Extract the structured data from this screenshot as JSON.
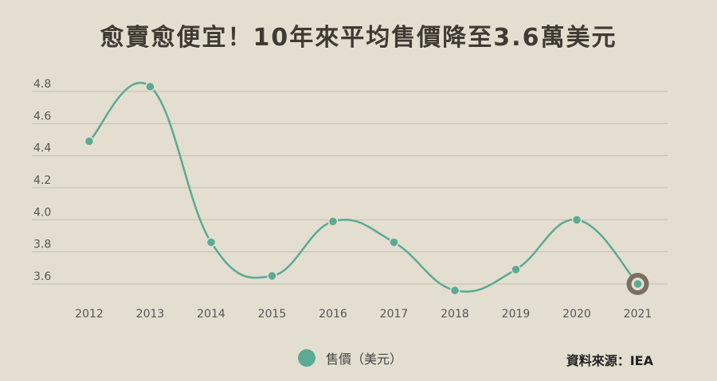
{
  "title": "愈賣愈便宜！10年來平均售價降至3.6萬美元",
  "legend": {
    "label": "售價（美元）"
  },
  "source": "資料來源：IEA",
  "colors": {
    "line": "#5aaa94",
    "highlight": "#7b705f",
    "grid": "#c4bdb0",
    "background": "#e4ded1"
  },
  "chart_data": {
    "type": "line",
    "title": "愈賣愈便宜！10年來平均售價降至3.6萬美元",
    "categories": [
      "2012",
      "2013",
      "2014",
      "2015",
      "2016",
      "2017",
      "2018",
      "2019",
      "2020",
      "2021"
    ],
    "series": [
      {
        "name": "售價（美元）",
        "values": [
          4.49,
          4.83,
          3.86,
          3.65,
          3.99,
          3.86,
          3.56,
          3.69,
          4.0,
          3.6
        ]
      }
    ],
    "y_ticks": [
      "3.6",
      "3.8",
      "4.0",
      "4.2",
      "4.4",
      "4.6",
      "4.8"
    ],
    "ylim": [
      3.6,
      4.8
    ],
    "xlabel": "",
    "ylabel": "",
    "grid": true,
    "highlight_last_point": true,
    "legend_position": "bottom"
  }
}
